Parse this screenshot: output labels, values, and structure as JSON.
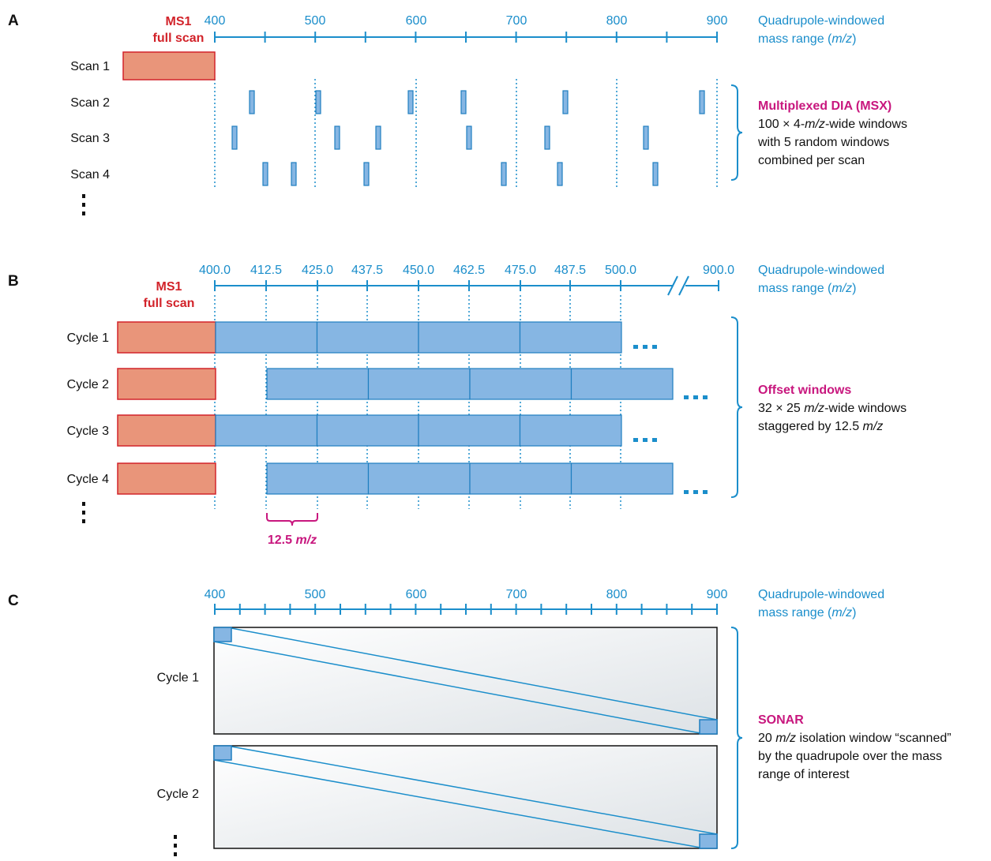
{
  "panels": [
    {
      "letter": "A",
      "ms1": [
        "MS1",
        "full scan"
      ],
      "axis_ticks": [
        "400",
        "500",
        "600",
        "700",
        "800",
        "900"
      ],
      "axis_title": [
        [
          "Quadrupole-windowed"
        ],
        [
          "mass range (",
          "m/z",
          ")"
        ]
      ],
      "rows": [
        "Scan 1",
        "Scan 2",
        "Scan 3",
        "Scan 4"
      ],
      "description_title": "Multiplexed DIA (MSX)",
      "description": [
        [
          "100 × 4-",
          "m/z",
          "-wide windows"
        ],
        [
          "with 5 random windows"
        ],
        [
          "combined per scan"
        ]
      ]
    },
    {
      "letter": "B",
      "ms1": [
        "MS1",
        "full scan"
      ],
      "axis_ticks": [
        "400.0",
        "412.5",
        "425.0",
        "437.5",
        "450.0",
        "462.5",
        "475.0",
        "487.5",
        "500.0",
        "900.0"
      ],
      "axis_title": [
        [
          "Quadrupole-windowed"
        ],
        [
          "mass range (",
          "m/z",
          ")"
        ]
      ],
      "rows": [
        "Cycle 1",
        "Cycle 2",
        "Cycle 3",
        "Cycle 4"
      ],
      "offset_label": [
        "12.5 ",
        "m/z"
      ],
      "description_title": "Offset windows",
      "description": [
        [
          "32 × 25 ",
          "m/z",
          "-wide windows"
        ],
        [
          "staggered by 12.5 ",
          "m/z"
        ]
      ]
    },
    {
      "letter": "C",
      "axis_ticks": [
        "400",
        "500",
        "600",
        "700",
        "800",
        "900"
      ],
      "axis_title": [
        [
          "Quadrupole-windowed"
        ],
        [
          "mass range (",
          "m/z",
          ")"
        ]
      ],
      "rows": [
        "Cycle 1",
        "Cycle 2"
      ],
      "description_title": "SONAR",
      "description": [
        [
          "20 ",
          "m/z",
          " isolation window “scanned”"
        ],
        [
          "by the quadrupole over the mass"
        ],
        [
          "range of interest"
        ]
      ]
    }
  ]
}
